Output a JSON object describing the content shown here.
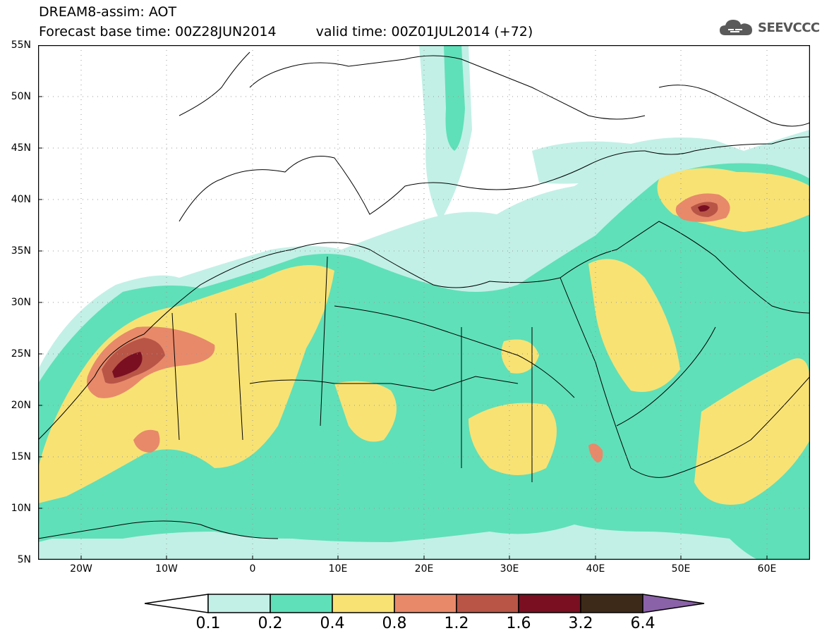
{
  "header": {
    "title_line1": "DREAM8-assim: AOT",
    "base_time_label": "Forecast base time: 00Z28JUN2014",
    "valid_time_label": "valid time: 00Z01JUL2014 (+72)"
  },
  "logo": {
    "text": "SEEVCCC",
    "icon": "cloud-icon"
  },
  "map": {
    "lat_labels": [
      "55N",
      "50N",
      "45N",
      "40N",
      "35N",
      "30N",
      "25N",
      "20N",
      "15N",
      "10N",
      "5N"
    ],
    "lon_labels": [
      "20W",
      "10W",
      "0",
      "10E",
      "20E",
      "30E",
      "40E",
      "50E",
      "60E"
    ]
  },
  "colorbar": {
    "labels": [
      "0.1",
      "0.2",
      "0.4",
      "0.8",
      "1.2",
      "1.6",
      "3.2",
      "6.4"
    ],
    "colors": [
      "#ffffff",
      "#c2f0e6",
      "#5fe0b8",
      "#f8e274",
      "#e8896a",
      "#b85547",
      "#7a0f22",
      "#3d2a18",
      "#8a62a8"
    ]
  }
}
